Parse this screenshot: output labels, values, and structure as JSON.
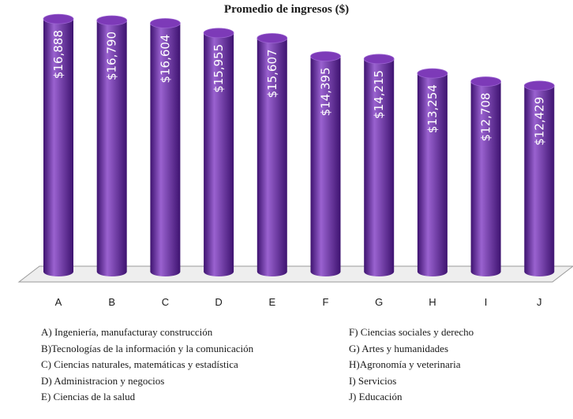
{
  "chart_data": {
    "type": "bar",
    "title": "Promedio de ingresos ($)",
    "categories": [
      "A",
      "B",
      "C",
      "D",
      "E",
      "F",
      "G",
      "H",
      "I",
      "J"
    ],
    "values": [
      16888,
      16790,
      16604,
      15955,
      15607,
      14395,
      14215,
      13254,
      12708,
      12429
    ],
    "value_labels": [
      "$16,888",
      "$16,790",
      "$16,604",
      "$15,955",
      "$15,607",
      "$14,395",
      "$14,215",
      "$13,254",
      "$12,708",
      "$12,429"
    ],
    "xlabel": "",
    "ylabel": "",
    "ylim": [
      0,
      18000
    ],
    "grid": false,
    "legend": {
      "left": [
        "A) Ingeniería, manufacturay construcción",
        "B)Tecnologías de la información y la comunicación",
        "C) Ciencias naturales, matemáticas y estadística",
        "D) Administracion y negocios",
        "E) Ciencias de la salud"
      ],
      "right": [
        "F) Ciencias sociales y derecho",
        "G) Artes y humanidades",
        "H)Agronomía y veterinaria",
        "I) Servicios",
        "J) Educación"
      ]
    },
    "colors": {
      "bar": "#6a2aa4",
      "bar_dark": "#3e1370",
      "bar_light": "#9a62d0",
      "bar_top": "#7d3ab8",
      "floor": "#eeeeee",
      "floor_edge": "#9a9a9a"
    }
  }
}
